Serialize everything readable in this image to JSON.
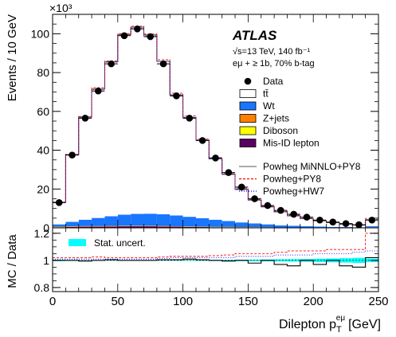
{
  "chart_data": [
    {
      "type": "bar",
      "panel": "main",
      "experiment": "ATLAS",
      "info_lines": [
        "√s=13 TeV, 140 fb⁻¹",
        "eμ + ≥ 1b, 70% b-tag"
      ],
      "ylabel": "Events / 10 GeV",
      "y_multiplier": "×10³",
      "xlim": [
        0,
        250
      ],
      "ylim": [
        0,
        110
      ],
      "y_ticks": [
        0,
        20,
        40,
        60,
        80,
        100
      ],
      "bin_edges": [
        0,
        10,
        20,
        30,
        40,
        50,
        60,
        70,
        80,
        90,
        100,
        110,
        120,
        130,
        140,
        150,
        160,
        170,
        180,
        190,
        200,
        210,
        220,
        230,
        240,
        250
      ],
      "data": [
        13,
        37.5,
        56.5,
        70.5,
        84.5,
        99,
        102.5,
        98.5,
        84.5,
        68,
        56.5,
        45,
        36,
        28.5,
        21,
        15,
        11.5,
        9,
        7,
        5.5,
        4,
        3,
        2.2,
        1.6,
        4
      ],
      "stack": [
        {
          "name": "Mis-ID lepton",
          "color": "#5a0060",
          "values": [
            0.3,
            0.5,
            0.6,
            0.6,
            0.7,
            0.8,
            0.8,
            0.8,
            0.7,
            0.6,
            0.5,
            0.4,
            0.3,
            0.3,
            0.2,
            0.2,
            0.1,
            0.1,
            0.1,
            0.1,
            0.1,
            0.1,
            0.1,
            0.1,
            0.1
          ]
        },
        {
          "name": "Diboson",
          "color": "#ffff00",
          "values": [
            0.1,
            0.1,
            0.1,
            0.1,
            0.1,
            0.1,
            0.1,
            0.1,
            0.1,
            0.1,
            0.1,
            0.1,
            0.1,
            0.1,
            0.1,
            0.1,
            0.1,
            0.1,
            0.1,
            0.1,
            0.1,
            0,
            0,
            0,
            0.1
          ]
        },
        {
          "name": "Z+jets",
          "color": "#ff8000",
          "values": [
            0.2,
            0.2,
            0.2,
            0.2,
            0.2,
            0.2,
            0.2,
            0.2,
            0.2,
            0.1,
            0.1,
            0.1,
            0.1,
            0.1,
            0.1,
            0.1,
            0.1,
            0,
            0,
            0,
            0,
            0,
            0,
            0,
            0.1
          ]
        },
        {
          "name": "Wt",
          "color": "#1976ff",
          "values": [
            1.2,
            2.3,
            3.3,
            4.2,
            5.0,
            5.7,
            6.1,
            6.2,
            6.0,
            5.6,
            5.0,
            4.4,
            3.7,
            3.0,
            2.4,
            1.9,
            1.5,
            1.1,
            0.9,
            0.7,
            0.5,
            0.4,
            0.3,
            0.2,
            0.6
          ]
        },
        {
          "name": "tt̄",
          "color": "#ffffff",
          "values": [
            11.4,
            34.6,
            52.9,
            66.4,
            79.6,
            92.8,
            96.2,
            92.1,
            78.8,
            62.0,
            51.1,
            40.1,
            31.3,
            24.1,
            17.0,
            12.0,
            9.0,
            6.9,
            5.1,
            3.8,
            2.9,
            2.2,
            1.5,
            1.1,
            3.2
          ]
        }
      ],
      "legend": [
        {
          "label": "Data",
          "kind": "marker"
        },
        {
          "label": "tt̄",
          "kind": "box",
          "color": "#ffffff"
        },
        {
          "label": "Wt",
          "kind": "box",
          "color": "#1976ff"
        },
        {
          "label": "Z+jets",
          "kind": "box",
          "color": "#ff8000"
        },
        {
          "label": "Diboson",
          "kind": "box",
          "color": "#ffff00"
        },
        {
          "label": "Mis-ID lepton",
          "kind": "box",
          "color": "#5a0060"
        },
        {
          "label": "Powheg MiNNLO+PY8",
          "kind": "line",
          "color": "#777777",
          "dash": "none"
        },
        {
          "label": "Powheg+PY8",
          "kind": "line",
          "color": "#ff0000",
          "dash": "3,2"
        },
        {
          "label": "Powheg+HW7",
          "kind": "line",
          "color": "#0000ff",
          "dash": "1,2"
        }
      ]
    },
    {
      "type": "line",
      "panel": "ratio",
      "ylabel": "MC / Data",
      "xlabel": "Dilepton p_T^{eμ} [GeV]",
      "xlabel_main": "Dilepton p",
      "xlabel_sub": "T",
      "xlabel_sup": "eμ",
      "xlabel_unit": "[GeV]",
      "xlim": [
        0,
        250
      ],
      "ylim": [
        0.77,
        1.24
      ],
      "y_ticks": [
        0.8,
        1,
        1.2
      ],
      "x_ticks": [
        0,
        50,
        100,
        150,
        200,
        250
      ],
      "band_legend": "Stat. uncert.",
      "band_color": "#00ffff",
      "band_halfwidth": [
        0.005,
        0.003,
        0.002,
        0.002,
        0.002,
        0.002,
        0.002,
        0.002,
        0.002,
        0.002,
        0.003,
        0.003,
        0.004,
        0.004,
        0.005,
        0.006,
        0.007,
        0.008,
        0.009,
        0.01,
        0.012,
        0.014,
        0.016,
        0.019,
        0.012
      ],
      "series": [
        {
          "name": "Powheg MiNNLO+PY8",
          "color": "#000000",
          "dash": "none",
          "values": [
            1.0,
            1.0,
            0.995,
            1.0,
            1.005,
            1.0,
            1.0,
            1.0,
            1.005,
            1.005,
            1.01,
            1.005,
            1.0,
            0.995,
            1.0,
            0.98,
            1.0,
            0.97,
            0.96,
            1.0,
            0.97,
            1.0,
            0.96,
            0.95,
            1.02
          ]
        },
        {
          "name": "Powheg+PY8",
          "color": "#ff0000",
          "dash": "3,2",
          "values": [
            1.02,
            1.02,
            1.02,
            1.025,
            1.02,
            1.02,
            1.02,
            1.02,
            1.025,
            1.03,
            1.03,
            1.03,
            1.035,
            1.04,
            1.05,
            1.05,
            1.05,
            1.06,
            1.07,
            1.07,
            1.07,
            1.08,
            1.08,
            1.08,
            1.2
          ]
        },
        {
          "name": "Powheg+HW7",
          "color": "#0000ff",
          "dash": "1,2",
          "values": [
            1.01,
            1.01,
            1.01,
            1.01,
            1.01,
            1.01,
            1.01,
            1.01,
            1.015,
            1.02,
            1.02,
            1.02,
            1.02,
            1.02,
            1.03,
            1.03,
            1.03,
            1.04,
            1.04,
            1.04,
            1.05,
            1.05,
            1.05,
            1.06,
            1.07
          ]
        }
      ]
    }
  ]
}
